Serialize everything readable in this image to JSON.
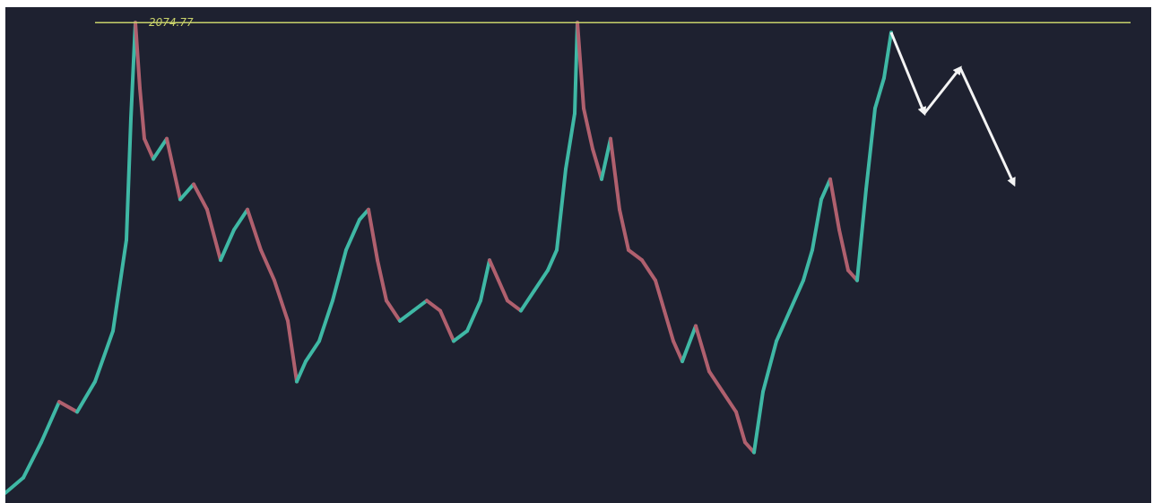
{
  "chart_data": {
    "type": "line",
    "title": "",
    "xlabel": "",
    "ylabel": "",
    "resistance_level": {
      "label": "2074.77",
      "value": 2074.77
    },
    "ylim": [
      1600,
      2090
    ],
    "x_range": [
      0,
      1278
    ],
    "series": [
      {
        "values": [
          [
            0,
            1610
          ],
          [
            20,
            1625
          ],
          [
            40,
            1660
          ],
          [
            60,
            1700
          ],
          [
            80,
            1690
          ],
          [
            100,
            1720
          ],
          [
            120,
            1770
          ],
          [
            135,
            1860
          ],
          [
            140,
            1980
          ],
          [
            145,
            2074.77
          ],
          [
            150,
            2010
          ],
          [
            155,
            1960
          ],
          [
            165,
            1940
          ],
          [
            180,
            1960
          ],
          [
            195,
            1900
          ],
          [
            210,
            1915
          ],
          [
            225,
            1890
          ],
          [
            240,
            1840
          ],
          [
            255,
            1870
          ],
          [
            270,
            1890
          ],
          [
            285,
            1850
          ],
          [
            300,
            1820
          ],
          [
            315,
            1780
          ],
          [
            325,
            1720
          ],
          [
            335,
            1740
          ],
          [
            350,
            1760
          ],
          [
            365,
            1800
          ],
          [
            380,
            1850
          ],
          [
            395,
            1880
          ],
          [
            405,
            1890
          ],
          [
            415,
            1840
          ],
          [
            425,
            1800
          ],
          [
            440,
            1780
          ],
          [
            455,
            1790
          ],
          [
            470,
            1800
          ],
          [
            485,
            1790
          ],
          [
            500,
            1760
          ],
          [
            515,
            1770
          ],
          [
            530,
            1800
          ],
          [
            540,
            1840
          ],
          [
            550,
            1820
          ],
          [
            560,
            1800
          ],
          [
            575,
            1790
          ],
          [
            590,
            1810
          ],
          [
            605,
            1830
          ],
          [
            615,
            1850
          ],
          [
            625,
            1930
          ],
          [
            635,
            1985
          ],
          [
            638,
            2074.77
          ],
          [
            645,
            1990
          ],
          [
            655,
            1950
          ],
          [
            665,
            1920
          ],
          [
            675,
            1960
          ],
          [
            685,
            1890
          ],
          [
            695,
            1850
          ],
          [
            710,
            1840
          ],
          [
            725,
            1820
          ],
          [
            735,
            1790
          ],
          [
            745,
            1760
          ],
          [
            755,
            1740
          ],
          [
            770,
            1775
          ],
          [
            785,
            1730
          ],
          [
            800,
            1710
          ],
          [
            815,
            1690
          ],
          [
            825,
            1660
          ],
          [
            835,
            1650
          ],
          [
            845,
            1710
          ],
          [
            860,
            1760
          ],
          [
            875,
            1790
          ],
          [
            890,
            1820
          ],
          [
            900,
            1850
          ],
          [
            910,
            1900
          ],
          [
            920,
            1920
          ],
          [
            930,
            1870
          ],
          [
            940,
            1830
          ],
          [
            950,
            1820
          ],
          [
            960,
            1910
          ],
          [
            970,
            1990
          ],
          [
            980,
            2020
          ],
          [
            988,
            2065
          ]
        ]
      }
    ],
    "projection": {
      "values": [
        [
          988,
          2065
        ],
        [
          1025,
          1985
        ],
        [
          1065,
          2030
        ],
        [
          1125,
          1915
        ]
      ]
    },
    "grid": false,
    "colors": {
      "background": "#1e2130",
      "price_up": "#3fb8a5",
      "price_down": "#b0606e",
      "resistance_line": "#c8d16a",
      "projection_arrow": "#f4f4f4"
    }
  }
}
